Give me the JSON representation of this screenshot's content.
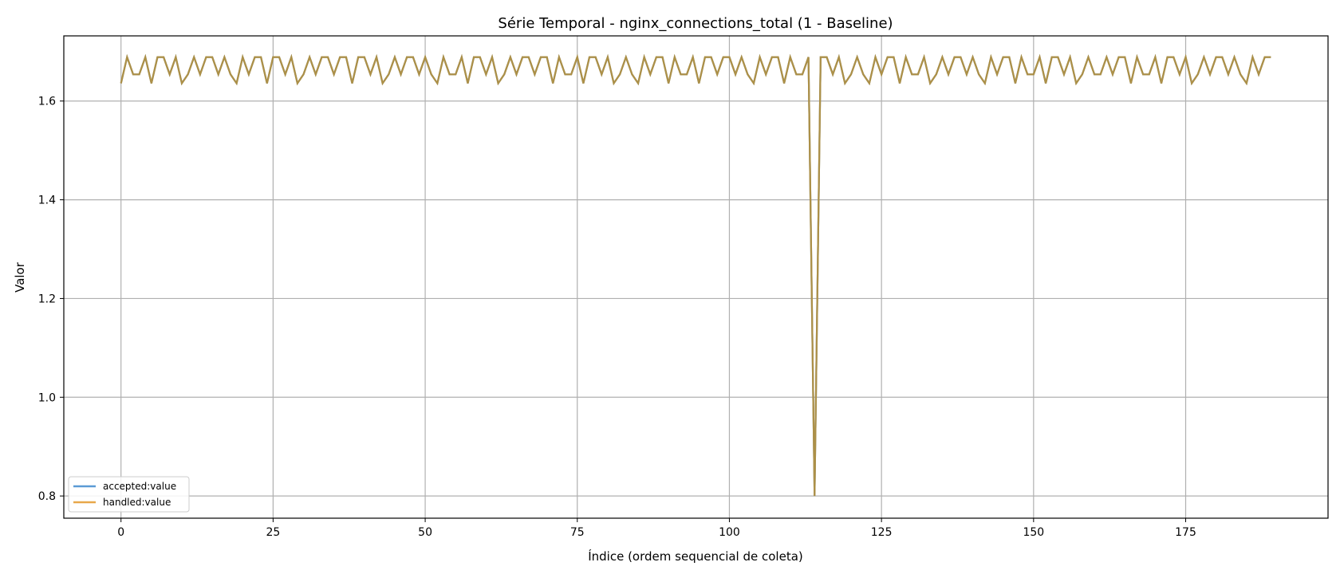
{
  "chart_data": {
    "type": "line",
    "title": "Série Temporal - nginx_connections_total (1 - Baseline)",
    "xlabel": "Índice (ordem sequencial de coleta)",
    "ylabel": "Valor",
    "xlim": [
      -9.4,
      198.4
    ],
    "ylim": [
      0.755,
      1.732
    ],
    "xticks": [
      0,
      25,
      50,
      75,
      100,
      125,
      150,
      175
    ],
    "yticks": [
      0.8,
      1.0,
      1.2,
      1.4,
      1.6
    ],
    "ytick_labels": [
      "0.8",
      "1.0",
      "1.2",
      "1.4",
      "1.6"
    ],
    "grid": true,
    "legend_position": "lower-left",
    "n_points": 189,
    "series": [
      {
        "name": "accepted:value",
        "color": "#5b9bd5",
        "values": [
          1.636,
          1.689,
          1.654,
          1.654,
          1.689,
          1.636,
          1.689,
          1.689,
          1.654,
          1.689,
          1.636,
          1.654,
          1.689,
          1.654,
          1.689,
          1.689,
          1.654,
          1.689,
          1.654,
          1.636,
          1.689,
          1.654,
          1.689,
          1.689,
          1.636,
          1.689,
          1.689,
          1.654,
          1.689,
          1.636,
          1.654,
          1.689,
          1.654,
          1.689,
          1.689,
          1.654,
          1.689,
          1.689,
          1.636,
          1.689,
          1.689,
          1.654,
          1.689,
          1.636,
          1.654,
          1.689,
          1.654,
          1.689,
          1.689,
          1.654,
          1.689,
          1.654,
          1.636,
          1.689,
          1.654,
          1.654,
          1.689,
          1.636,
          1.689,
          1.689,
          1.654,
          1.689,
          1.636,
          1.654,
          1.689,
          1.654,
          1.689,
          1.689,
          1.654,
          1.689,
          1.689,
          1.636,
          1.689,
          1.654,
          1.654,
          1.689,
          1.636,
          1.689,
          1.689,
          1.654,
          1.689,
          1.636,
          1.654,
          1.689,
          1.654,
          1.636,
          1.689,
          1.654,
          1.689,
          1.689,
          1.636,
          1.689,
          1.654,
          1.654,
          1.689,
          1.636,
          1.689,
          1.689,
          1.654,
          1.689,
          1.689,
          1.654,
          1.689,
          1.654,
          1.636,
          1.689,
          1.654,
          1.689,
          1.689,
          1.636,
          1.689,
          1.654,
          1.654,
          1.689,
          0.8,
          1.689,
          1.689,
          1.654,
          1.689,
          1.636,
          1.654,
          1.689,
          1.654,
          1.636,
          1.689,
          1.654,
          1.689,
          1.689,
          1.636,
          1.689,
          1.654,
          1.654,
          1.689,
          1.636,
          1.654,
          1.689,
          1.654,
          1.689,
          1.689,
          1.654,
          1.689,
          1.654,
          1.636,
          1.689,
          1.654,
          1.689,
          1.689,
          1.636,
          1.689,
          1.654,
          1.654,
          1.689,
          1.636,
          1.689,
          1.689,
          1.654,
          1.689,
          1.636,
          1.654,
          1.689,
          1.654,
          1.654,
          1.689,
          1.654,
          1.689,
          1.689,
          1.636,
          1.689,
          1.654,
          1.654,
          1.689,
          1.636,
          1.689,
          1.689,
          1.654,
          1.689,
          1.636,
          1.654,
          1.689,
          1.654,
          1.689,
          1.689,
          1.654,
          1.689,
          1.654,
          1.636,
          1.689,
          1.654,
          1.689,
          1.689
        ]
      },
      {
        "name": "handled:value",
        "color": "#e8a84a",
        "values": [
          1.636,
          1.689,
          1.654,
          1.654,
          1.689,
          1.636,
          1.689,
          1.689,
          1.654,
          1.689,
          1.636,
          1.654,
          1.689,
          1.654,
          1.689,
          1.689,
          1.654,
          1.689,
          1.654,
          1.636,
          1.689,
          1.654,
          1.689,
          1.689,
          1.636,
          1.689,
          1.689,
          1.654,
          1.689,
          1.636,
          1.654,
          1.689,
          1.654,
          1.689,
          1.689,
          1.654,
          1.689,
          1.689,
          1.636,
          1.689,
          1.689,
          1.654,
          1.689,
          1.636,
          1.654,
          1.689,
          1.654,
          1.689,
          1.689,
          1.654,
          1.689,
          1.654,
          1.636,
          1.689,
          1.654,
          1.654,
          1.689,
          1.636,
          1.689,
          1.689,
          1.654,
          1.689,
          1.636,
          1.654,
          1.689,
          1.654,
          1.689,
          1.689,
          1.654,
          1.689,
          1.689,
          1.636,
          1.689,
          1.654,
          1.654,
          1.689,
          1.636,
          1.689,
          1.689,
          1.654,
          1.689,
          1.636,
          1.654,
          1.689,
          1.654,
          1.636,
          1.689,
          1.654,
          1.689,
          1.689,
          1.636,
          1.689,
          1.654,
          1.654,
          1.689,
          1.636,
          1.689,
          1.689,
          1.654,
          1.689,
          1.689,
          1.654,
          1.689,
          1.654,
          1.636,
          1.689,
          1.654,
          1.689,
          1.689,
          1.636,
          1.689,
          1.654,
          1.654,
          1.689,
          0.8,
          1.689,
          1.689,
          1.654,
          1.689,
          1.636,
          1.654,
          1.689,
          1.654,
          1.636,
          1.689,
          1.654,
          1.689,
          1.689,
          1.636,
          1.689,
          1.654,
          1.654,
          1.689,
          1.636,
          1.654,
          1.689,
          1.654,
          1.689,
          1.689,
          1.654,
          1.689,
          1.654,
          1.636,
          1.689,
          1.654,
          1.689,
          1.689,
          1.636,
          1.689,
          1.654,
          1.654,
          1.689,
          1.636,
          1.689,
          1.689,
          1.654,
          1.689,
          1.636,
          1.654,
          1.689,
          1.654,
          1.654,
          1.689,
          1.654,
          1.689,
          1.689,
          1.636,
          1.689,
          1.654,
          1.654,
          1.689,
          1.636,
          1.689,
          1.689,
          1.654,
          1.689,
          1.636,
          1.654,
          1.689,
          1.654,
          1.689,
          1.689,
          1.654,
          1.689,
          1.654,
          1.636,
          1.689,
          1.654,
          1.689,
          1.689
        ]
      }
    ],
    "overlap_color": "#ac9048"
  }
}
